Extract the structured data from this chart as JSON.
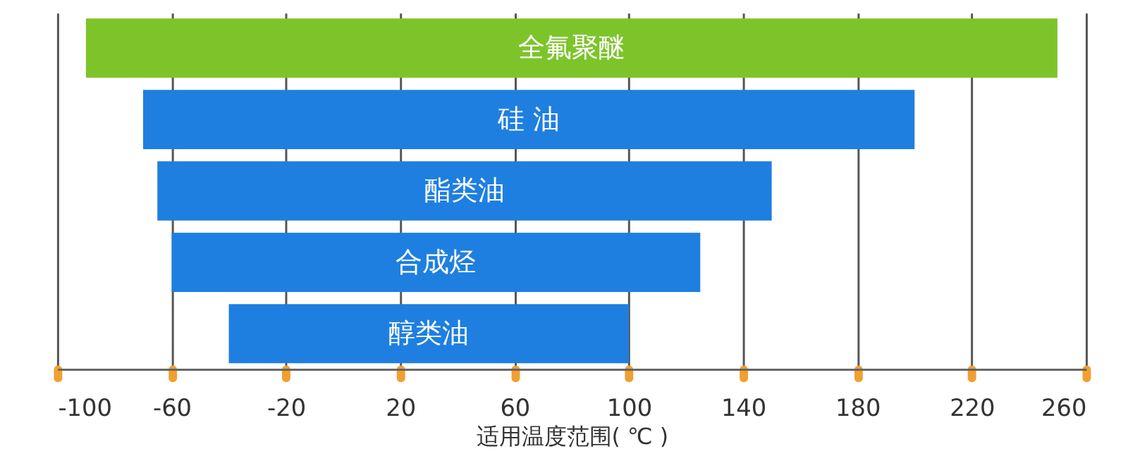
{
  "chart_data": {
    "type": "bar",
    "orientation": "horizontal",
    "xlabel": "适用温度范围( ℃ )",
    "categories": [
      "全氟聚醚",
      "硅 油",
      "酯类油",
      "合成烃",
      "醇类油"
    ],
    "base": [
      -90,
      -70,
      -65,
      -60,
      -40
    ],
    "values": [
      340,
      270,
      215,
      185,
      140
    ],
    "colors": [
      "#7dc42a",
      "#1e7fe0",
      "#1e7fe0",
      "#1e7fe0",
      "#1e7fe0"
    ],
    "xlim": [
      -100,
      260
    ],
    "xticks": [
      -100,
      -60,
      -20,
      20,
      60,
      100,
      140,
      180,
      220,
      260
    ],
    "grid": "x",
    "tick_labels": "x"
  }
}
